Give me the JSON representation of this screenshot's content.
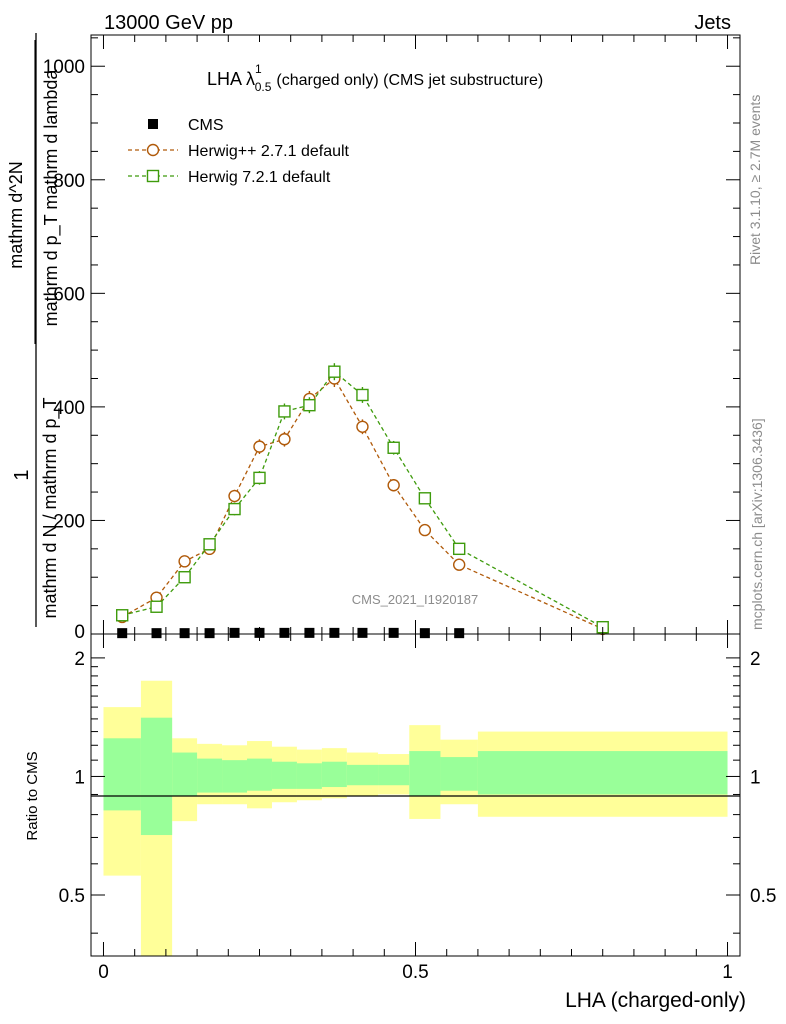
{
  "header": {
    "left": "13000 GeV pp",
    "right": "Jets"
  },
  "main_title": {
    "prefix": "LHA λ",
    "sup": "1",
    "sub": "0.5",
    "suffix": "(charged only) (CMS jet substructure)"
  },
  "side_texts": {
    "rivet": "Rivet 3.1.10, ≥ 2.7M events",
    "mcplots": "mcplots.cern.ch [arXiv:1306.3436]"
  },
  "watermark": "CMS_2021_I1920187",
  "axes": {
    "main_ylabel_numerator": "1",
    "main_ylabel_denominator": "mathrm d N / mathrm d p_T",
    "main_ylabel_fraction_numerator": "mathrm d^2N",
    "main_ylabel_fraction_denominator": "mathrm d p_T mathrm d lambda",
    "ratio_ylabel": "Ratio to CMS",
    "xlabel": "LHA (charged-only)",
    "main_yticks": [
      "0",
      "200",
      "400",
      "600",
      "800",
      "1000"
    ],
    "ratio_yticks": [
      "0.5",
      "1",
      "2"
    ],
    "xticks": [
      "0",
      "0.5",
      "1"
    ]
  },
  "chart_data": [
    {
      "type": "scatter",
      "panel": "main",
      "xlim": [
        -0.02,
        1.02
      ],
      "ylim": [
        0,
        1055
      ],
      "bin_edges": [
        0.0,
        0.06,
        0.11,
        0.15,
        0.19,
        0.23,
        0.27,
        0.31,
        0.35,
        0.39,
        0.44,
        0.49,
        0.54,
        0.6,
        1.0
      ],
      "series": [
        {
          "name": "CMS",
          "marker": "filled-square",
          "color": "#000000",
          "x": [
            0.03,
            0.085,
            0.13,
            0.17,
            0.21,
            0.25,
            0.29,
            0.33,
            0.37,
            0.415,
            0.465,
            0.515,
            0.57
          ],
          "y": [
            1.5,
            1.5,
            1.5,
            1.5,
            2,
            2,
            2,
            2,
            2,
            2,
            2,
            1.5,
            1.5
          ]
        },
        {
          "name": "Herwig++ 2.7.1 default",
          "marker": "open-circle",
          "color": "#b05a0a",
          "x": [
            0.03,
            0.085,
            0.13,
            0.17,
            0.21,
            0.25,
            0.29,
            0.33,
            0.37,
            0.415,
            0.465,
            0.515,
            0.57,
            0.8
          ],
          "y": [
            30,
            64,
            128,
            150,
            243,
            330,
            343,
            414,
            450,
            365,
            262,
            183,
            122,
            9
          ],
          "yerr": [
            5,
            6,
            8,
            9,
            11,
            13,
            13,
            14,
            15,
            13,
            11,
            9,
            7,
            2
          ]
        },
        {
          "name": "Herwig 7.2.1 default",
          "marker": "open-square",
          "color": "#3e9b0c",
          "x": [
            0.03,
            0.085,
            0.13,
            0.17,
            0.21,
            0.25,
            0.29,
            0.33,
            0.37,
            0.415,
            0.465,
            0.515,
            0.57,
            0.8
          ],
          "y": [
            33,
            48,
            100,
            158,
            220,
            275,
            392,
            403,
            462,
            421,
            328,
            239,
            150,
            12
          ],
          "yerr": [
            5,
            6,
            8,
            9,
            11,
            12,
            14,
            14,
            15,
            14,
            12,
            10,
            8,
            2
          ]
        }
      ]
    },
    {
      "type": "area",
      "panel": "ratio",
      "reference_line": 1,
      "ylim": [
        0.35,
        2.3
      ],
      "y_scale": "log",
      "bin_edges": [
        0.0,
        0.06,
        0.11,
        0.15,
        0.19,
        0.23,
        0.27,
        0.31,
        0.35,
        0.39,
        0.44,
        0.49,
        0.54,
        0.6,
        1.0
      ],
      "bands": [
        {
          "name": "stat",
          "color": "#99ff99",
          "lower": [
            0.82,
            0.71,
            0.89,
            0.91,
            0.91,
            0.92,
            0.93,
            0.93,
            0.94,
            0.95,
            0.95,
            0.89,
            0.92,
            0.9
          ],
          "upper": [
            1.25,
            1.41,
            1.15,
            1.11,
            1.1,
            1.11,
            1.09,
            1.08,
            1.09,
            1.07,
            1.07,
            1.16,
            1.12,
            1.16
          ]
        },
        {
          "name": "syst",
          "color": "#ffff99",
          "lower": [
            0.56,
            0.33,
            0.77,
            0.85,
            0.85,
            0.83,
            0.86,
            0.87,
            0.88,
            0.89,
            0.9,
            0.78,
            0.85,
            0.79
          ],
          "upper": [
            1.5,
            1.75,
            1.25,
            1.21,
            1.2,
            1.23,
            1.19,
            1.17,
            1.18,
            1.15,
            1.14,
            1.35,
            1.24,
            1.3
          ]
        }
      ]
    }
  ]
}
